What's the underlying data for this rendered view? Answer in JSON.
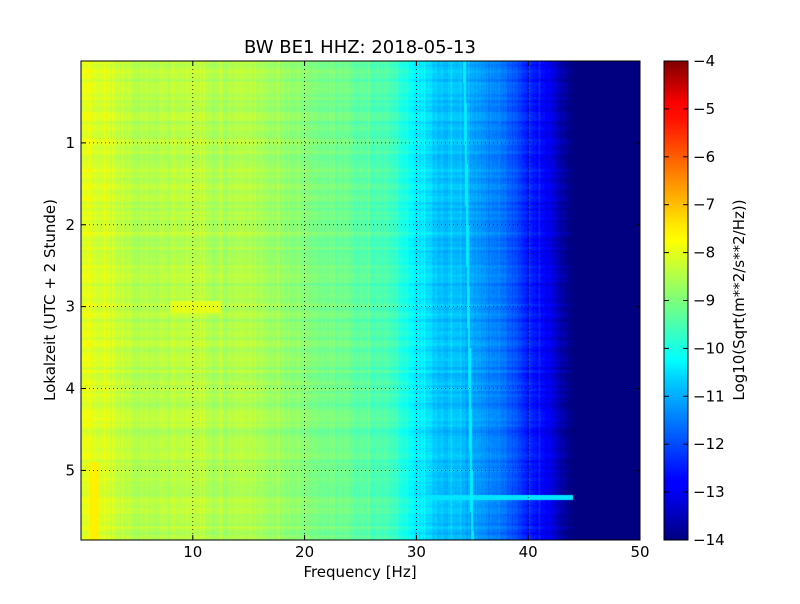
{
  "chart_data": {
    "type": "heatmap",
    "title": "BW BE1 HHZ: 2018-05-13",
    "xlabel": "Frequency [Hz]",
    "ylabel": "Lokalzeit (UTC + 2 Stunde)",
    "xlim": [
      0,
      50
    ],
    "ylim": [
      0,
      5.85
    ],
    "y_inverted": true,
    "x_ticks": [
      10,
      20,
      30,
      40,
      50
    ],
    "x_tick_labels": [
      "10",
      "20",
      "30",
      "40",
      "50"
    ],
    "y_ticks": [
      1,
      2,
      3,
      4,
      5
    ],
    "y_tick_labels": [
      "1",
      "2",
      "3",
      "4",
      "5"
    ],
    "grid": true,
    "grid_style": "dotted",
    "colormap": "jet",
    "colorbar": {
      "label": "Log10(Sqrt(m**2/s**2/Hz))",
      "range": [
        -14,
        -4
      ],
      "ticks": [
        -4,
        -5,
        -6,
        -7,
        -8,
        -9,
        -10,
        -11,
        -12,
        -13,
        -14
      ],
      "tick_labels": [
        "−4",
        "−5",
        "−6",
        "−7",
        "−8",
        "−9",
        "−10",
        "−11",
        "−12",
        "−13",
        "−14"
      ]
    },
    "spectral_profile": {
      "frequency_hz": [
        0,
        2,
        5,
        8,
        10,
        12,
        15,
        18,
        20,
        25,
        28,
        30,
        32,
        34,
        36,
        38,
        40,
        42,
        43,
        44,
        50
      ],
      "value": [
        -8.0,
        -8.2,
        -8.5,
        -8.5,
        -8.3,
        -8.6,
        -8.5,
        -8.8,
        -9.0,
        -9.3,
        -9.6,
        -10.4,
        -10.8,
        -11.0,
        -11.3,
        -11.7,
        -12.4,
        -13.0,
        -13.6,
        -14.0,
        -14.0
      ]
    },
    "features": [
      {
        "label": "",
        "frequency_hz": [
          34.3,
          35.0
        ],
        "time": [
          0.0,
          5.85
        ],
        "value": -10.4
      },
      {
        "label": "",
        "frequency_hz": [
          30.5,
          44.0
        ],
        "time": [
          5.3,
          5.36
        ],
        "value": -10.5
      },
      {
        "label": "",
        "frequency_hz": [
          8.0,
          12.5
        ],
        "time": [
          2.93,
          3.08
        ],
        "value": -8.0
      },
      {
        "label": "",
        "frequency_hz": [
          0.8,
          1.6
        ],
        "time": [
          4.9,
          5.85
        ],
        "value": -7.6
      }
    ]
  }
}
